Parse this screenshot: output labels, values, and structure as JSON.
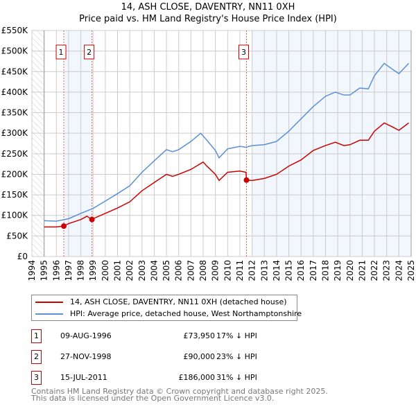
{
  "chart_data": {
    "type": "line",
    "title": "14, ASH CLOSE, DAVENTRY, NN11 0XH",
    "subtitle": "Price paid vs. HM Land Registry's House Price Index (HPI)",
    "xlim": [
      1994,
      2025
    ],
    "ylim": [
      0,
      550000
    ],
    "y_ticks": [
      0,
      50000,
      100000,
      150000,
      200000,
      250000,
      300000,
      350000,
      400000,
      450000,
      500000,
      550000
    ],
    "y_tick_labels": [
      "£0",
      "£50K",
      "£100K",
      "£150K",
      "£200K",
      "£250K",
      "£300K",
      "£350K",
      "£400K",
      "£450K",
      "£500K",
      "£550K"
    ],
    "x_ticks": [
      "1994",
      "1995",
      "1996",
      "1997",
      "1998",
      "1999",
      "2000",
      "2001",
      "2002",
      "2003",
      "2004",
      "2005",
      "2006",
      "2007",
      "2008",
      "2009",
      "2010",
      "2011",
      "2012",
      "2013",
      "2014",
      "2015",
      "2016",
      "2017",
      "2018",
      "2019",
      "2020",
      "2021",
      "2022",
      "2023",
      "2024",
      "2025"
    ],
    "grid": true,
    "series": [
      {
        "name": "14, ASH CLOSE, DAVENTRY, NN11 0XH (detached house)",
        "color": "#cc0000",
        "x": [
          1995,
          1996,
          1996.61,
          1997,
          1998,
          1998.5,
          1998.91,
          1999,
          2000,
          2001,
          2002,
          2003,
          2004,
          2005,
          2005.5,
          2006,
          2007,
          2008,
          2008.3,
          2009,
          2009.3,
          2010,
          2011,
          2011.5,
          2011.54,
          2012,
          2013,
          2014,
          2015,
          2016,
          2017,
          2018,
          2018.8,
          2019.5,
          2020,
          2020.8,
          2021.5,
          2022,
          2022.8,
          2023.5,
          2024,
          2024.8
        ],
        "values": [
          72000,
          72000,
          73950,
          80000,
          90000,
          98000,
          90000,
          92000,
          105000,
          118000,
          133000,
          160000,
          180000,
          200000,
          195000,
          200000,
          212000,
          230000,
          220000,
          200000,
          185000,
          205000,
          208000,
          205000,
          186000,
          185000,
          190000,
          200000,
          220000,
          235000,
          258000,
          270000,
          278000,
          270000,
          272000,
          283000,
          283000,
          305000,
          325000,
          315000,
          307000,
          325000
        ]
      },
      {
        "name": "HPI: Average price, detached house, West Northamptonshire",
        "color": "#5b8fd6",
        "x": [
          1995,
          1996,
          1997,
          1998,
          1999,
          2000,
          2001,
          2002,
          2003,
          2004,
          2005,
          2005.5,
          2006,
          2007,
          2007.8,
          2008.3,
          2009,
          2009.3,
          2010,
          2011,
          2011.5,
          2012,
          2013,
          2014,
          2015,
          2016,
          2017,
          2018,
          2018.8,
          2019.5,
          2020,
          2020.8,
          2021.5,
          2022,
          2022.8,
          2023.5,
          2024,
          2024.8
        ],
        "values": [
          87000,
          86000,
          92000,
          105000,
          117000,
          135000,
          153000,
          172000,
          205000,
          233000,
          260000,
          255000,
          260000,
          280000,
          300000,
          283000,
          258000,
          240000,
          262000,
          268000,
          266000,
          270000,
          272000,
          280000,
          305000,
          335000,
          365000,
          390000,
          400000,
          393000,
          393000,
          410000,
          408000,
          440000,
          470000,
          455000,
          445000,
          470000
        ]
      }
    ],
    "sales": [
      {
        "label": "1",
        "x": 1996.61,
        "date": "09-AUG-1996",
        "price": "£73,950",
        "value": 73950,
        "hpi": "17% ↓ HPI"
      },
      {
        "label": "2",
        "x": 1998.91,
        "date": "27-NOV-1998",
        "price": "£90,000",
        "value": 90000,
        "hpi": "23% ↓ HPI"
      },
      {
        "label": "3",
        "x": 2011.54,
        "date": "15-JUL-2011",
        "price": "£186,000",
        "value": 186000,
        "hpi": "31% ↓ HPI"
      }
    ]
  },
  "legend": {
    "property": "14, ASH CLOSE, DAVENTRY, NN11 0XH (detached house)",
    "hpi": "HPI: Average price, detached house, West Northamptonshire"
  },
  "footer": {
    "line1": "Contains HM Land Registry data © Crown copyright and database right 2025.",
    "line2": "This data is licensed under the Open Government Licence v3.0."
  }
}
